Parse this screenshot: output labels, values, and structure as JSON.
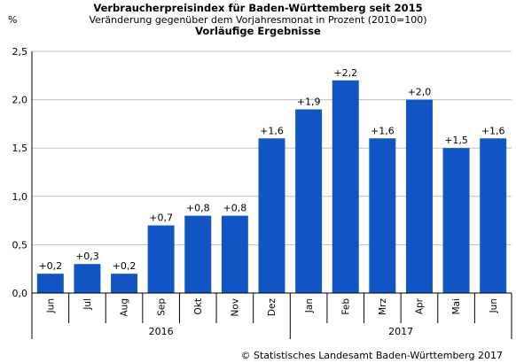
{
  "chart_data": {
    "type": "bar",
    "title": "Verbraucherpreisindex für Baden-Württemberg seit 2015",
    "subtitle": "Veränderung gegenüber dem Vorjahresmonat in Prozent (2010=100)",
    "subtitle2": "Vorläufige Ergebnisse",
    "ylabel": "%",
    "ylim": [
      0,
      2.5
    ],
    "yticks": [
      "0,0",
      "0,5",
      "1,0",
      "1,5",
      "2,0",
      "2,5"
    ],
    "ytick_values": [
      0,
      0.5,
      1.0,
      1.5,
      2.0,
      2.5
    ],
    "categories": [
      "Jun",
      "Jul",
      "Aug",
      "Sep",
      "Okt",
      "Nov",
      "Dez",
      "Jan",
      "Feb",
      "Mrz",
      "Apr",
      "Mai",
      "Jun"
    ],
    "values": [
      0.2,
      0.3,
      0.2,
      0.7,
      0.8,
      0.8,
      1.6,
      1.9,
      2.2,
      1.6,
      2.0,
      1.5,
      1.6
    ],
    "data_labels": [
      "+0,2",
      "+0,3",
      "+0,2",
      "+0,7",
      "+0,8",
      "+0,8",
      "+1,6",
      "+1,9",
      "+2,2",
      "+1,6",
      "+2,0",
      "+1,5",
      "+1,6"
    ],
    "groups": [
      {
        "label": "2016",
        "count": 7
      },
      {
        "label": "2017",
        "count": 6
      }
    ],
    "bar_color": "#1155c4",
    "grid": true
  },
  "footer": {
    "credit": "© Statistisches Landesamt Baden-Württemberg 2017"
  }
}
